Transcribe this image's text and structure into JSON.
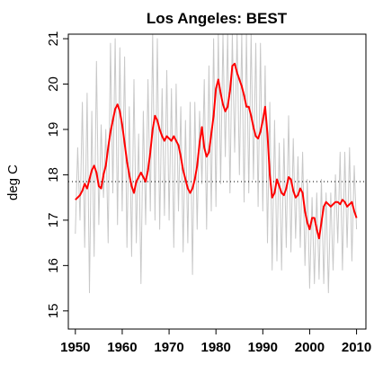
{
  "chart_data": {
    "type": "line",
    "title": "Los Angeles: BEST",
    "xlabel": "",
    "ylabel": "deg C",
    "xlim": [
      1948.5,
      2012.0
    ],
    "ylim": [
      14.6,
      21.1
    ],
    "xticks": [
      1950,
      1960,
      1970,
      1980,
      1990,
      2000,
      2010
    ],
    "yticks": [
      15,
      16,
      17,
      18,
      19,
      20,
      21
    ],
    "xtick_labels": [
      "1950",
      "1960",
      "1970",
      "1980",
      "1990",
      "2000",
      "2010"
    ],
    "ytick_labels": [
      "15",
      "16",
      "17",
      "18",
      "19",
      "20",
      "21"
    ],
    "reference_line": {
      "y": 17.85,
      "style": "dotted",
      "color": "#000000"
    },
    "grid": false,
    "colors": {
      "monthly": "#c8c8c8",
      "smoothed": "#ff0000",
      "axes": "#000000"
    },
    "series": [
      {
        "style": "monthly",
        "x": [
          1950.0,
          1950.5,
          1951.0,
          1951.5,
          1952.0,
          1952.5,
          1953.0,
          1953.5,
          1954.0,
          1954.5,
          1955.0,
          1955.5,
          1956.0,
          1956.5,
          1957.0,
          1957.5,
          1958.0,
          1958.5,
          1959.0,
          1959.5,
          1960.0,
          1960.5,
          1961.0,
          1961.5,
          1962.0,
          1962.5,
          1963.0,
          1963.5,
          1964.0,
          1964.5,
          1965.0,
          1965.5,
          1966.0,
          1966.5,
          1967.0,
          1967.5,
          1968.0,
          1968.5,
          1969.0,
          1969.5,
          1970.0,
          1970.5,
          1971.0,
          1971.5,
          1972.0,
          1972.5,
          1973.0,
          1973.5,
          1974.0,
          1974.5,
          1975.0,
          1975.5,
          1976.0,
          1976.5,
          1977.0,
          1977.5,
          1978.0,
          1978.5,
          1979.0,
          1979.5,
          1980.0,
          1980.5,
          1981.0,
          1981.5,
          1982.0,
          1982.5,
          1983.0,
          1983.5,
          1984.0,
          1984.5,
          1985.0,
          1985.5,
          1986.0,
          1986.5,
          1987.0,
          1987.5,
          1988.0,
          1988.5,
          1989.0,
          1989.5,
          1990.0,
          1990.5,
          1991.0,
          1991.5,
          1992.0,
          1992.5,
          1993.0,
          1993.5,
          1994.0,
          1994.5,
          1995.0,
          1995.5,
          1996.0,
          1996.5,
          1997.0,
          1997.5,
          1998.0,
          1998.5,
          1999.0,
          1999.5,
          2000.0,
          2000.5,
          2001.0,
          2001.5,
          2002.0,
          2002.5,
          2003.0,
          2003.5,
          2004.0,
          2004.5,
          2005.0,
          2005.5,
          2006.0,
          2006.5,
          2007.0,
          2007.5,
          2008.0,
          2008.5,
          2009.0,
          2009.5,
          2010.0
        ],
        "values": [
          16.7,
          18.6,
          17.0,
          19.6,
          16.4,
          19.8,
          15.4,
          19.4,
          16.2,
          20.5,
          16.9,
          19.1,
          17.5,
          19.0,
          16.5,
          20.9,
          17.6,
          21.0,
          16.9,
          20.8,
          17.2,
          20.6,
          16.4,
          19.5,
          16.2,
          20.1,
          16.5,
          18.9,
          15.6,
          19.4,
          16.9,
          20.1,
          17.2,
          21.1,
          17.0,
          21.0,
          16.8,
          19.9,
          17.1,
          20.3,
          17.0,
          19.9,
          16.4,
          20.0,
          17.2,
          19.5,
          16.3,
          19.2,
          16.5,
          19.6,
          15.8,
          19.6,
          16.8,
          19.4,
          17.8,
          20.1,
          16.8,
          20.4,
          17.2,
          21.0,
          17.3,
          21.1,
          17.8,
          21.1,
          18.4,
          21.1,
          17.6,
          21.1,
          18.5,
          21.1,
          18.0,
          21.1,
          17.4,
          21.1,
          17.6,
          21.1,
          17.9,
          20.9,
          17.3,
          20.9,
          17.2,
          20.4,
          16.5,
          19.6,
          15.9,
          19.2,
          16.1,
          18.7,
          15.9,
          18.8,
          16.4,
          19.3,
          16.3,
          18.8,
          16.6,
          18.4,
          16.4,
          18.5,
          16.0,
          17.9,
          15.5,
          17.5,
          15.6,
          17.6,
          15.7,
          17.9,
          15.6,
          17.6,
          15.4,
          17.6,
          15.9,
          18.0,
          16.5,
          18.5,
          15.9,
          18.5,
          16.4,
          18.6,
          16.1,
          18.2,
          16.8
        ]
      },
      {
        "style": "smoothed",
        "x": [
          1950.0,
          1950.5,
          1951.0,
          1951.5,
          1952.0,
          1952.5,
          1953.0,
          1953.5,
          1954.0,
          1954.5,
          1955.0,
          1955.5,
          1956.0,
          1956.5,
          1957.0,
          1957.5,
          1958.0,
          1958.5,
          1959.0,
          1959.5,
          1960.0,
          1960.5,
          1961.0,
          1961.5,
          1962.0,
          1962.5,
          1963.0,
          1963.5,
          1964.0,
          1964.5,
          1965.0,
          1965.5,
          1966.0,
          1966.5,
          1967.0,
          1967.5,
          1968.0,
          1968.5,
          1969.0,
          1969.5,
          1970.0,
          1970.5,
          1971.0,
          1971.5,
          1972.0,
          1972.5,
          1973.0,
          1973.5,
          1974.0,
          1974.5,
          1975.0,
          1975.5,
          1976.0,
          1976.5,
          1977.0,
          1977.5,
          1978.0,
          1978.5,
          1979.0,
          1979.5,
          1980.0,
          1980.5,
          1981.0,
          1981.5,
          1982.0,
          1982.5,
          1983.0,
          1983.5,
          1984.0,
          1984.5,
          1985.0,
          1985.5,
          1986.0,
          1986.5,
          1987.0,
          1987.5,
          1988.0,
          1988.5,
          1989.0,
          1989.5,
          1990.0,
          1990.5,
          1991.0,
          1991.5,
          1992.0,
          1992.5,
          1993.0,
          1993.5,
          1994.0,
          1994.5,
          1995.0,
          1995.5,
          1996.0,
          1996.5,
          1997.0,
          1997.5,
          1998.0,
          1998.5,
          1999.0,
          1999.5,
          2000.0,
          2000.5,
          2001.0,
          2001.5,
          2002.0,
          2002.5,
          2003.0,
          2003.5,
          2004.0,
          2004.5,
          2005.0,
          2005.5,
          2006.0,
          2006.5,
          2007.0,
          2007.5,
          2008.0,
          2008.5,
          2009.0,
          2009.5,
          2010.0
        ],
        "values": [
          17.45,
          17.5,
          17.55,
          17.65,
          17.8,
          17.7,
          17.9,
          18.1,
          18.2,
          18.05,
          17.75,
          17.7,
          18.0,
          18.2,
          18.6,
          18.95,
          19.2,
          19.45,
          19.55,
          19.4,
          19.1,
          18.7,
          18.3,
          18.0,
          17.75,
          17.6,
          17.85,
          17.95,
          18.05,
          17.95,
          17.85,
          18.1,
          18.5,
          19.0,
          19.3,
          19.2,
          19.0,
          18.85,
          18.75,
          18.85,
          18.8,
          18.75,
          18.85,
          18.75,
          18.65,
          18.4,
          18.1,
          17.9,
          17.7,
          17.6,
          17.7,
          17.9,
          18.2,
          18.7,
          19.05,
          18.6,
          18.4,
          18.5,
          18.9,
          19.3,
          19.9,
          20.1,
          19.8,
          19.55,
          19.4,
          19.5,
          19.85,
          20.4,
          20.45,
          20.25,
          20.1,
          19.95,
          19.75,
          19.5,
          19.5,
          19.3,
          19.05,
          18.85,
          18.8,
          18.95,
          19.2,
          19.5,
          18.9,
          18.0,
          17.5,
          17.6,
          17.9,
          17.75,
          17.6,
          17.55,
          17.7,
          17.95,
          17.9,
          17.65,
          17.5,
          17.55,
          17.7,
          17.6,
          17.2,
          16.95,
          16.8,
          17.05,
          17.05,
          16.8,
          16.6,
          16.95,
          17.3,
          17.4,
          17.35,
          17.3,
          17.35,
          17.4,
          17.4,
          17.35,
          17.45,
          17.4,
          17.3,
          17.35,
          17.4,
          17.2,
          17.05
        ]
      }
    ]
  }
}
